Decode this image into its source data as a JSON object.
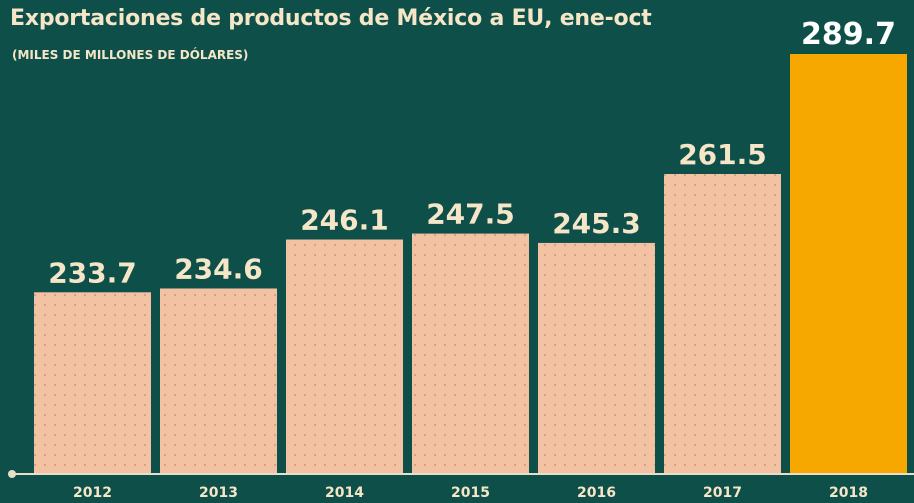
{
  "chart_data": {
    "type": "bar",
    "title": "Exportaciones de productos de México a EU, ene-oct",
    "subtitle": "(MILES DE MILLONES DE DÓLARES)",
    "categories": [
      "2012",
      "2013",
      "2014",
      "2015",
      "2016",
      "2017",
      "2018"
    ],
    "values": [
      233.7,
      234.6,
      246.1,
      247.5,
      245.3,
      261.5,
      289.7
    ],
    "value_labels": [
      "233.7",
      "234.6",
      "246.1",
      "247.5",
      "245.3",
      "261.5",
      "289.7"
    ],
    "xlabel": "",
    "ylabel": "",
    "ylim": [
      191,
      289.7
    ],
    "grid": false,
    "legend": "none",
    "colors": {
      "background": "#0e4f49",
      "bar": "#f2c2a2",
      "bar_highlight": "#f7a800",
      "bar_dots": "#c49a80",
      "text": "#f5e6c8",
      "highlight_label": "#ffffff",
      "axis": "#e8dfc8"
    },
    "highlight_category": "2018"
  }
}
